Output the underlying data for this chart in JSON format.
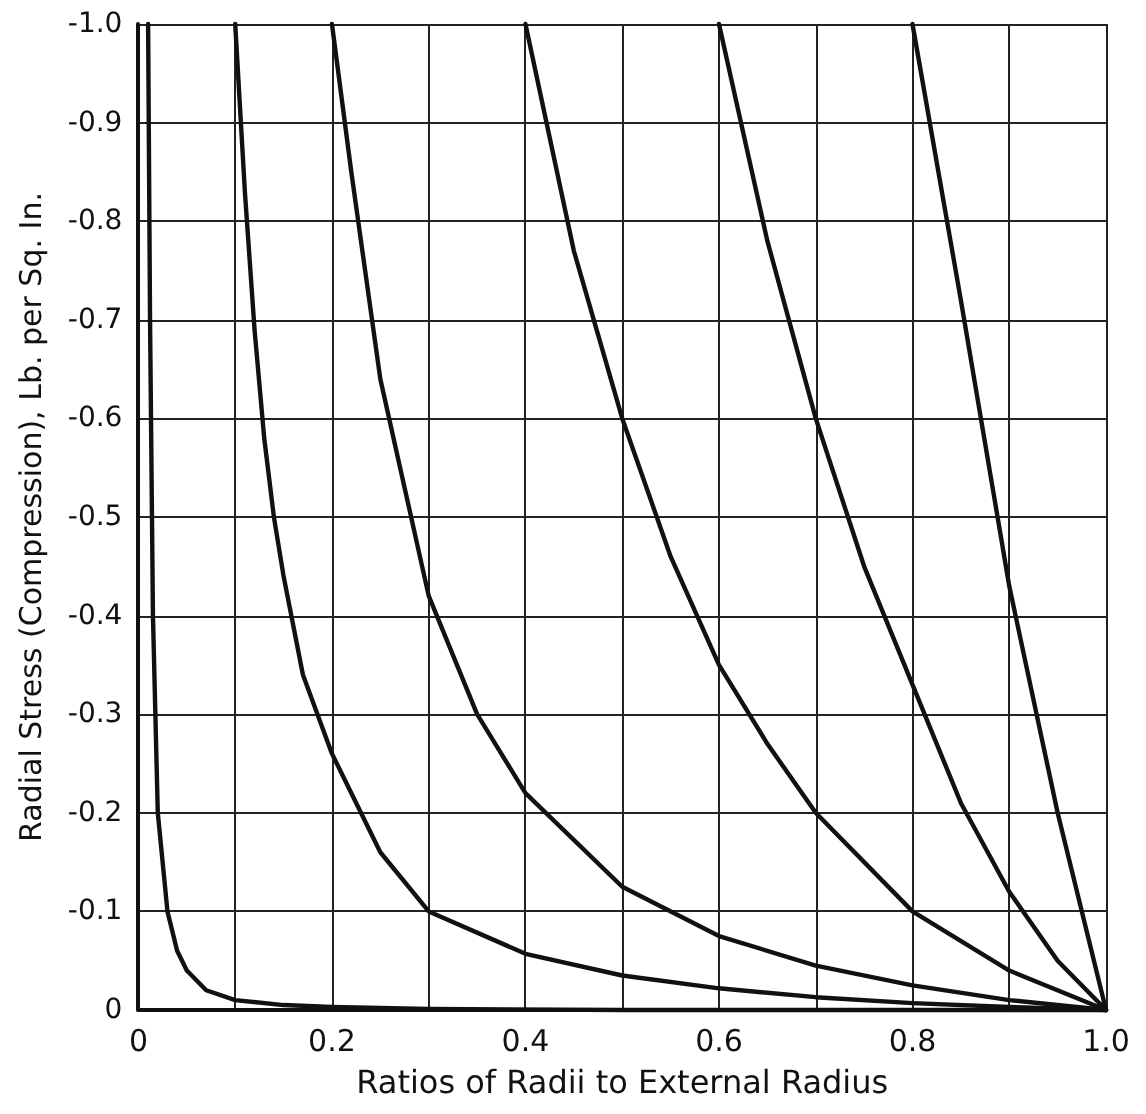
{
  "chart_data": {
    "type": "line",
    "xlabel": "Ratios of Radii to External Radius",
    "ylabel": "Radial Stress (Compression), Lb. per Sq. In.",
    "xlim": [
      0,
      1.0
    ],
    "ylim": [
      0,
      -1.0
    ],
    "xticks": [
      0,
      {
        "value": 0.1,
        "label": null
      },
      "0.2",
      {
        "value": 0.3,
        "label": null
      },
      0.4,
      {
        "value": 0.5,
        "label": null
      },
      0.6,
      {
        "value": 0.7,
        "label": null
      },
      0.8,
      {
        "value": 0.9,
        "label": null
      },
      {
        "value": 1.0,
        "label": "1.0"
      }
    ],
    "yticks": [
      0,
      {
        "value": -0.1,
        "label": "-0.1"
      },
      {
        "value": -0.2,
        "label": "-0.2"
      },
      {
        "value": -0.3,
        "label": "-0.3"
      },
      {
        "value": -0.4,
        "label": "-0.4"
      },
      {
        "value": -0.5,
        "label": "-0.5"
      },
      {
        "value": -0.6,
        "label": "-0.6"
      },
      {
        "value": -0.7,
        "label": "-0.7"
      },
      {
        "value": -0.8,
        "label": "-0.8"
      },
      {
        "value": -0.9,
        "label": "-0.9"
      },
      {
        "value": -1.0,
        "label": "-1.0"
      }
    ],
    "grid": true,
    "marker": "none",
    "line_style": "solid",
    "series": [
      {
        "color": "#111111",
        "x": [
          0.01,
          0.012,
          0.015,
          0.02,
          0.03,
          0.04,
          0.05,
          0.07,
          0.1,
          0.15,
          0.2,
          0.3,
          0.5,
          1.0
        ],
        "values": [
          -1.0,
          -0.7,
          -0.4,
          -0.2,
          -0.1,
          -0.06,
          -0.04,
          -0.02,
          -0.01,
          -0.005,
          -0.003,
          -0.001,
          0,
          0
        ]
      },
      {
        "color": "#111111",
        "x": [
          0.1,
          0.11,
          0.12,
          0.13,
          0.14,
          0.15,
          0.17,
          0.2,
          0.25,
          0.3,
          0.4,
          0.5,
          0.6,
          0.7,
          0.8,
          0.9,
          1.0
        ],
        "values": [
          -1.0,
          -0.83,
          -0.69,
          -0.58,
          -0.5,
          -0.44,
          -0.34,
          -0.26,
          -0.16,
          -0.1,
          -0.057,
          -0.035,
          -0.022,
          -0.013,
          -0.007,
          -0.003,
          0
        ]
      },
      {
        "color": "#111111",
        "x": [
          0.2,
          0.22,
          0.25,
          0.3,
          0.35,
          0.4,
          0.5,
          0.6,
          0.7,
          0.8,
          0.9,
          1.0
        ],
        "values": [
          -1.0,
          -0.85,
          -0.64,
          -0.42,
          -0.3,
          -0.22,
          -0.125,
          -0.075,
          -0.045,
          -0.025,
          -0.01,
          0
        ]
      },
      {
        "color": "#111111",
        "x": [
          0.4,
          0.45,
          0.5,
          0.55,
          0.6,
          0.65,
          0.7,
          0.8,
          0.9,
          1.0
        ],
        "values": [
          -1.0,
          -0.77,
          -0.6,
          -0.46,
          -0.35,
          -0.27,
          -0.2,
          -0.1,
          -0.04,
          0
        ]
      },
      {
        "color": "#111111",
        "x": [
          0.6,
          0.65,
          0.7,
          0.75,
          0.8,
          0.85,
          0.9,
          0.95,
          1.0
        ],
        "values": [
          -1.0,
          -0.78,
          -0.6,
          -0.45,
          -0.33,
          -0.21,
          -0.12,
          -0.05,
          0
        ]
      },
      {
        "color": "#111111",
        "x": [
          0.8,
          0.85,
          0.9,
          0.95,
          1.0
        ],
        "values": [
          -1.0,
          -0.72,
          -0.43,
          -0.2,
          0
        ]
      }
    ]
  }
}
